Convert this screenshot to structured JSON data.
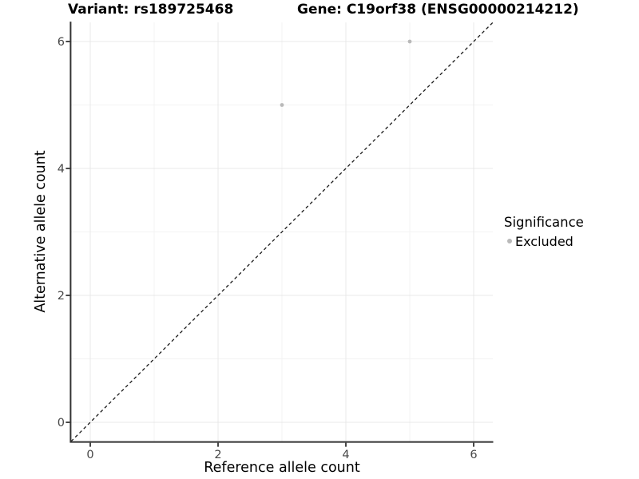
{
  "header": {
    "title_left": "Variant: rs189725468",
    "title_right": "Gene: C19orf38 (ENSG00000214212)"
  },
  "chart_data": {
    "type": "scatter",
    "xlabel": "Reference allele count",
    "ylabel": "Alternative allele count",
    "xlim": [
      -0.3,
      6.3
    ],
    "ylim": [
      -0.3,
      6.3
    ],
    "x_ticks": [
      0,
      2,
      4,
      6
    ],
    "y_ticks": [
      0,
      2,
      4,
      6
    ],
    "x_minor_ticks": [
      1,
      3,
      5
    ],
    "y_minor_ticks": [
      1,
      3,
      5
    ],
    "grid": true,
    "series": [
      {
        "name": "Excluded",
        "color": "#b9b9b9",
        "points": [
          {
            "x": 3,
            "y": 5
          },
          {
            "x": 5,
            "y": 6
          }
        ]
      }
    ],
    "reference_line": {
      "type": "identity",
      "style": "dashed",
      "color": "#1a1a1a",
      "from": -0.3,
      "to": 6.3
    },
    "legend": {
      "title": "Significance",
      "position": "right",
      "items": [
        {
          "label": "Excluded",
          "color": "#b9b9b9"
        }
      ]
    }
  },
  "colors": {
    "background": "#ffffff",
    "grid_major": "#e8e8e8",
    "grid_minor": "#f3f3f3",
    "axis_line": "#333333",
    "tick_mark": "#333333",
    "tick_label": "#474747",
    "point": "#b9b9b9"
  }
}
